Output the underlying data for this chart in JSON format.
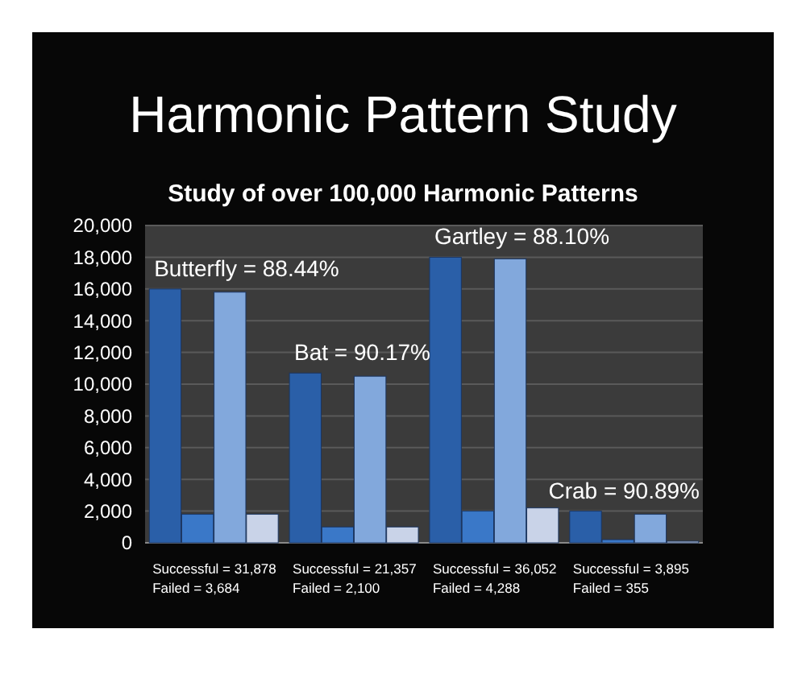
{
  "chart_data": {
    "type": "bar",
    "title": "Harmonic Pattern Study",
    "subtitle": "Study of over 100,000 Harmonic Patterns",
    "categories": [
      "Successful = 31,878\nFailed = 3,684",
      "Successful = 21,357\nFailed = 2,100",
      "Successful = 36,052\nFailed = 4,288",
      "Successful = 3,895\nFailed = 355"
    ],
    "series": [
      {
        "color": "#2a5fa8",
        "values": [
          16000,
          10700,
          18000,
          2000
        ]
      },
      {
        "color": "#3a78c8",
        "values": [
          1800,
          1000,
          2000,
          200
        ]
      },
      {
        "color": "#82a8dc",
        "values": [
          15800,
          10500,
          17900,
          1800
        ]
      },
      {
        "color": "#c9d3e8",
        "values": [
          1800,
          1000,
          2200,
          100
        ]
      }
    ],
    "annotations": [
      "Butterfly = 88.44%",
      "Bat = 90.17%",
      "Gartley = 88.10%",
      "Crab = 90.89%"
    ],
    "ylim": [
      0,
      20000
    ],
    "yticks": [
      {
        "value": 0,
        "label": "0"
      },
      {
        "value": 2000,
        "label": "2,000"
      },
      {
        "value": 4000,
        "label": "4,000"
      },
      {
        "value": 6000,
        "label": "6,000"
      },
      {
        "value": 8000,
        "label": "8,000"
      },
      {
        "value": 10000,
        "label": "10,000"
      },
      {
        "value": 12000,
        "label": "12,000"
      },
      {
        "value": 14000,
        "label": "14,000"
      },
      {
        "value": 16000,
        "label": "16,000"
      },
      {
        "value": 18000,
        "label": "18,000"
      },
      {
        "value": 20000,
        "label": "20,000"
      }
    ],
    "grid": "y"
  }
}
